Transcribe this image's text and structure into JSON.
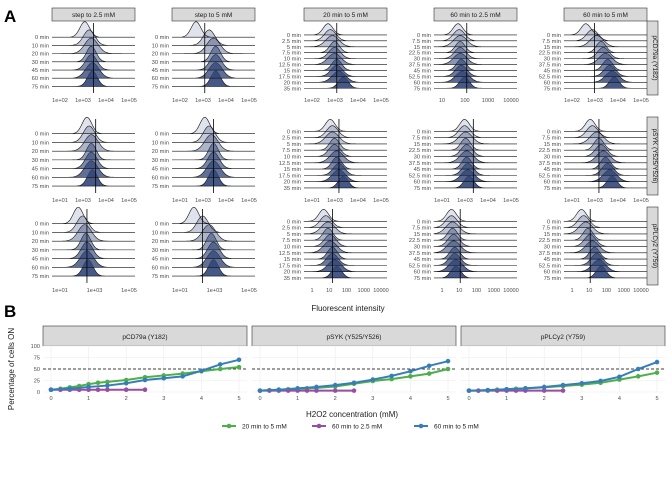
{
  "panel_labels": {
    "a": "A",
    "b": "B"
  },
  "chart_data": [
    {
      "type": "ridgeline",
      "xlabel": "Fluorescent intensity",
      "x_scale": "log",
      "columns": [
        {
          "title": "step to 2.5 mM",
          "times": [
            "0 min",
            "10 min",
            "20 min",
            "30 min",
            "45 min",
            "60 min",
            "75 min"
          ],
          "xticks": [
            "1e+02",
            "1e+03",
            "1e+04",
            "1e+05"
          ]
        },
        {
          "title": "step to 5 mM",
          "times": [
            "0 min",
            "10 min",
            "20 min",
            "30 min",
            "45 min",
            "60 min",
            "75 min"
          ],
          "xticks": [
            "1e+02",
            "1e+03",
            "1e+04",
            "1e+05"
          ]
        },
        {
          "title": "20 min to 5 mM",
          "times": [
            "0 min",
            "2.5 min",
            "5 min",
            "7.5 min",
            "10 min",
            "12.5 min",
            "15 min",
            "17.5 min",
            "20 min",
            "35 min"
          ],
          "xticks": [
            "1e+02",
            "1e+03",
            "1e+04",
            "1e+05"
          ]
        },
        {
          "title": "60 min to 2.5 mM",
          "times": [
            "0 min",
            "7.5 min",
            "15 min",
            "22.5 min",
            "30 min",
            "37.5 min",
            "45 min",
            "52.5 min",
            "60 min",
            "75 min"
          ],
          "xticks": [
            "10",
            "100",
            "1000",
            "10000"
          ]
        },
        {
          "title": "60 min to 5 mM",
          "times": [
            "0 min",
            "7.5 min",
            "15 min",
            "22.5 min",
            "30 min",
            "37.5 min",
            "45 min",
            "52.5 min",
            "60 min",
            "75 min"
          ],
          "xticks": [
            "1e+02",
            "1e+03",
            "1e+04",
            "1e+05"
          ]
        }
      ],
      "rows": [
        {
          "label": "pCD79a (Y182)"
        },
        {
          "label": "pSYK (Y525/Y526)",
          "xticks_by_col": [
            [
              "1e+02",
              "1e+03",
              "1e+04",
              "1e+05"
            ],
            [
              "1e+02",
              "1e+03",
              "1e+04",
              "1e+05"
            ],
            [
              "1e+02",
              "1e+03",
              "1e+04",
              "1e+05"
            ],
            [
              "1e+02",
              "1e+03",
              "1e+04",
              "1e+05"
            ],
            [
              "1e+02",
              "1e+03",
              "1e+04",
              "1e+05"
            ]
          ]
        },
        {
          "label": "pPLCy2 (Y759)",
          "xticks_by_col": [
            [
              "1e+01",
              "1e+03",
              "1e+05"
            ],
            [
              "1e+01",
              "1e+03",
              "1e+05"
            ],
            [
              "1",
              "10",
              "100",
              "1000",
              "10000"
            ],
            [
              "1",
              "10",
              "100",
              "1000",
              "10000"
            ],
            [
              "1",
              "10",
              "100",
              "1000",
              "10000"
            ]
          ]
        }
      ],
      "row_tick_overrides": {
        "1": [
          [
            "1e+01",
            "1e+03",
            "1e+04",
            "1e+05"
          ],
          [
            "1e+01",
            "1e+03",
            "1e+04",
            "1e+05"
          ],
          [
            "1e+01",
            "1e+03",
            "1e+04",
            "1e+05"
          ],
          [
            "1e+01",
            "1e+03",
            "1e+04",
            "1e+05"
          ],
          [
            "1e+01",
            "1e+03",
            "1e+04",
            "1e+05"
          ]
        ]
      },
      "peak_log10_by_row_col": [
        [
          [
            2.7,
            2.9,
            3.0,
            3.0,
            3.0,
            3.05,
            3.05
          ],
          [
            2.3,
            2.9,
            3.1,
            3.2,
            3.2,
            3.2,
            3.2
          ],
          [
            2.3,
            2.4,
            2.5,
            2.6,
            2.6,
            2.6,
            2.7,
            2.7,
            2.8,
            3.0
          ],
          [
            2.3,
            2.35,
            2.4,
            2.4,
            2.4,
            2.4,
            2.45,
            2.45,
            2.5,
            2.6
          ],
          [
            2.2,
            2.5,
            2.7,
            2.9,
            3.0,
            3.1,
            3.2,
            3.3,
            3.4,
            3.5
          ]
        ],
        [
          [
            2.8,
            2.9,
            3.0,
            3.0,
            3.0,
            3.0,
            3.05
          ],
          [
            2.7,
            2.9,
            3.0,
            3.1,
            3.1,
            3.1,
            3.1
          ],
          [
            2.4,
            2.5,
            2.5,
            2.6,
            2.6,
            2.7,
            2.7,
            2.8,
            2.8,
            3.0
          ],
          [
            2.6,
            2.6,
            2.65,
            2.65,
            2.7,
            2.7,
            2.7,
            2.75,
            2.75,
            2.8
          ],
          [
            2.4,
            2.5,
            2.7,
            2.8,
            2.9,
            3.0,
            3.1,
            3.2,
            3.3,
            3.4
          ]
        ],
        [
          [
            2.4,
            2.6,
            2.7,
            2.75,
            2.8,
            2.8,
            2.85
          ],
          [
            2.2,
            2.6,
            2.9,
            3.0,
            3.1,
            3.1,
            3.1
          ],
          [
            2.1,
            2.2,
            2.3,
            2.3,
            2.4,
            2.4,
            2.5,
            2.5,
            2.6,
            2.7
          ],
          [
            2.0,
            2.0,
            2.05,
            2.05,
            2.1,
            2.1,
            2.15,
            2.15,
            2.2,
            2.2
          ],
          [
            2.0,
            2.1,
            2.2,
            2.3,
            2.4,
            2.5,
            2.6,
            2.7,
            2.8,
            2.9
          ]
        ]
      ]
    },
    {
      "type": "line",
      "xlabel": "H2O2 concentration (mM)",
      "ylabel": "Percentage of cells ON",
      "xlim": [
        0,
        5
      ],
      "ylim": [
        0,
        100
      ],
      "xticks": [
        0,
        1,
        2,
        3,
        4,
        5
      ],
      "yticks": [
        0,
        25,
        50,
        75,
        100
      ],
      "threshold": 50,
      "grid": true,
      "legend_position": "bottom",
      "facets": [
        {
          "title": "pCD79a (Y182)",
          "series": [
            {
              "name": "20 min to 5 mM",
              "color": "#4daf4a",
              "x": [
                0,
                0.25,
                0.5,
                0.75,
                1,
                1.25,
                1.5,
                2,
                2.5,
                3,
                3.5,
                4,
                4.5,
                5
              ],
              "y": [
                5,
                7,
                10,
                13,
                17,
                20,
                22,
                26,
                32,
                36,
                40,
                45,
                50,
                54
              ]
            },
            {
              "name": "60 min to 2.5 mM",
              "color": "#984ea3",
              "x": [
                0,
                0.25,
                0.5,
                0.75,
                1,
                1.25,
                1.5,
                2,
                2.5
              ],
              "y": [
                5,
                5,
                5,
                5,
                5,
                5,
                5,
                5,
                5
              ]
            },
            {
              "name": "60 min to 5 mM",
              "color": "#377eb8",
              "x": [
                0,
                0.5,
                1,
                1.5,
                2,
                2.5,
                3,
                3.5,
                4,
                4.5,
                5
              ],
              "y": [
                5,
                7,
                11,
                14,
                19,
                26,
                30,
                34,
                46,
                60,
                70
              ]
            }
          ]
        },
        {
          "title": "pSYK (Y525/Y526)",
          "series": [
            {
              "name": "20 min to 5 mM",
              "color": "#4daf4a",
              "x": [
                0,
                0.25,
                0.5,
                0.75,
                1,
                1.25,
                1.5,
                2,
                2.5,
                3,
                3.5,
                4,
                4.5,
                5
              ],
              "y": [
                3,
                4,
                5,
                6,
                7,
                8,
                9,
                12,
                18,
                24,
                28,
                34,
                40,
                50
              ]
            },
            {
              "name": "60 min to 2.5 mM",
              "color": "#984ea3",
              "x": [
                0,
                0.25,
                0.5,
                0.75,
                1,
                1.25,
                1.5,
                2,
                2.5
              ],
              "y": [
                3,
                3,
                3,
                3,
                3,
                3,
                3,
                3,
                3
              ]
            },
            {
              "name": "60 min to 5 mM",
              "color": "#377eb8",
              "x": [
                0,
                0.5,
                1,
                1.5,
                2,
                2.5,
                3,
                3.5,
                4,
                4.5,
                5
              ],
              "y": [
                3,
                5,
                8,
                11,
                15,
                20,
                27,
                35,
                45,
                57,
                67
              ]
            }
          ]
        },
        {
          "title": "pPLCy2 (Y759)",
          "series": [
            {
              "name": "20 min to 5 mM",
              "color": "#4daf4a",
              "x": [
                0,
                0.25,
                0.5,
                0.75,
                1,
                1.25,
                1.5,
                2,
                2.5,
                3,
                3.5,
                4,
                4.5,
                5
              ],
              "y": [
                3,
                3,
                4,
                5,
                6,
                7,
                8,
                10,
                13,
                16,
                20,
                27,
                34,
                42
              ]
            },
            {
              "name": "60 min to 2.5 mM",
              "color": "#984ea3",
              "x": [
                0,
                0.25,
                0.5,
                0.75,
                1,
                1.25,
                1.5,
                2,
                2.5
              ],
              "y": [
                3,
                3,
                3,
                3,
                3,
                3,
                3,
                3,
                3
              ]
            },
            {
              "name": "60 min to 5 mM",
              "color": "#377eb8",
              "x": [
                0,
                0.5,
                1,
                1.5,
                2,
                2.5,
                3,
                3.5,
                4,
                4.5,
                5
              ],
              "y": [
                3,
                4,
                6,
                8,
                11,
                15,
                19,
                24,
                33,
                50,
                65
              ]
            }
          ]
        }
      ],
      "legend": [
        {
          "name": "20 min to 5 mM",
          "color": "#4daf4a"
        },
        {
          "name": "60 min to 2.5 mM",
          "color": "#984ea3"
        },
        {
          "name": "60 min to 5 mM",
          "color": "#377eb8"
        }
      ]
    }
  ]
}
